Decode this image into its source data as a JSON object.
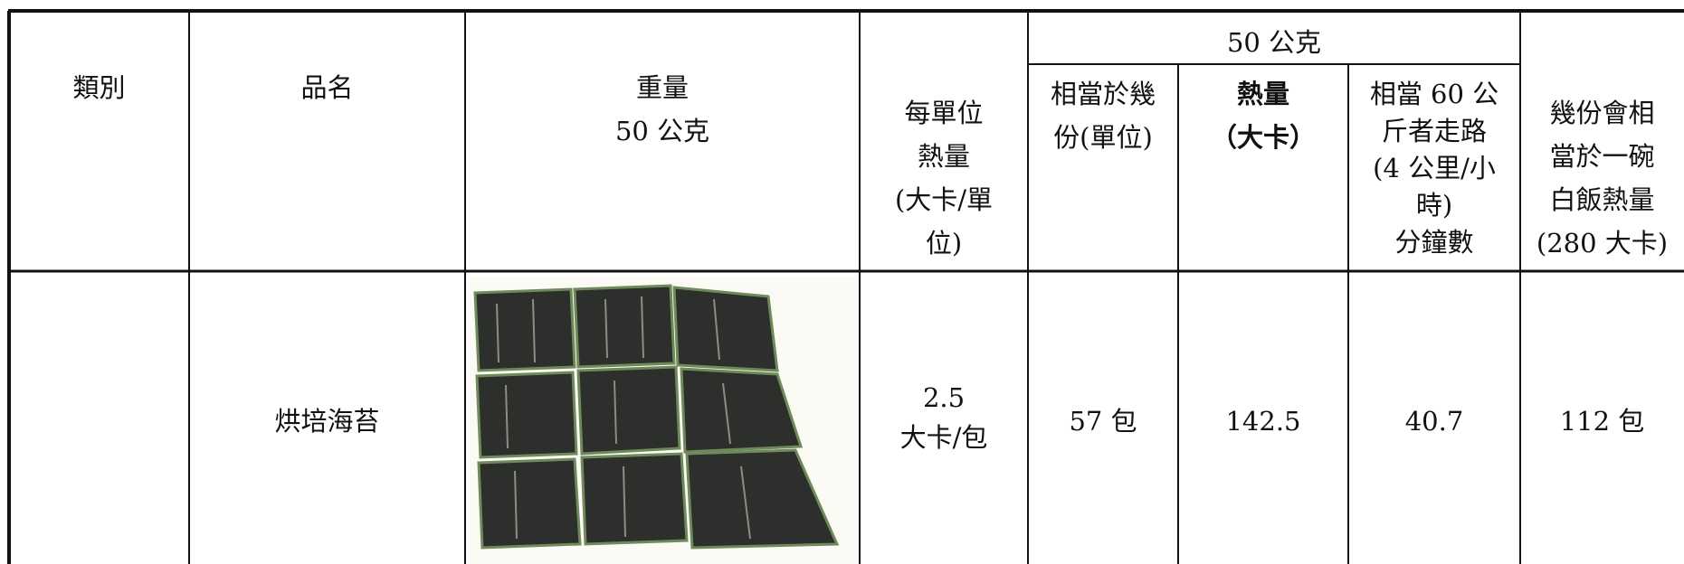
{
  "table": {
    "header": {
      "category": "類別",
      "name": "品名",
      "weight": [
        "重量",
        "50 公克"
      ],
      "unit_calories": [
        "每單位",
        "熱量",
        "(大卡/單",
        "位)"
      ],
      "group": "50 公克",
      "servings": [
        "相當於幾",
        "份(單位)"
      ],
      "calories": [
        "熱量",
        "（大卡）"
      ],
      "walking": [
        "相當 60 公",
        "斤者走路",
        "(4 公里/小",
        "時)",
        "分鐘數"
      ],
      "rice": [
        "幾份會相",
        "當於一碗",
        "白飯熱量",
        "(280 大卡)"
      ]
    },
    "rows": [
      {
        "name": "烘培海苔",
        "unit_calories": [
          "2.5",
          "大卡/包"
        ],
        "servings": "57 包",
        "calories": "142.5",
        "walking": "40.7",
        "rice": "112 包"
      }
    ]
  }
}
